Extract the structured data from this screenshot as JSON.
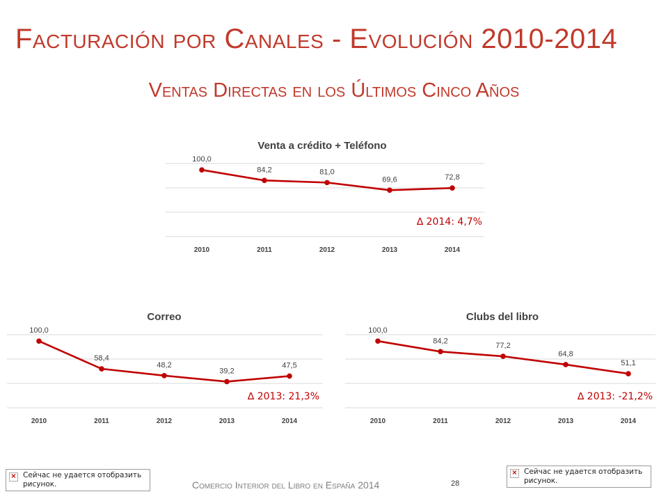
{
  "main_title": "Facturación por Canales - Evolución 2010-2014",
  "subtitle": "Ventas Directas en los Últimos Cinco Años",
  "footer": "Comercio Interior del Libro en España 2014",
  "page_number": "28",
  "broken_image_left": "Сейчас не удается отобразить рисунок.",
  "broken_image_right": "Сейчас не удается отобразить рисунок.",
  "colors": {
    "accent": "#c0392b",
    "series": "#c00000"
  },
  "chart_data": [
    {
      "type": "line",
      "title": "Venta a crédito + Teléfono",
      "categories": [
        "2010",
        "2011",
        "2012",
        "2013",
        "2014"
      ],
      "values": [
        100.0,
        84.2,
        81.0,
        69.6,
        72.8
      ],
      "labels": [
        "100,0",
        "84,2",
        "81,0",
        "69,6",
        "72,8"
      ],
      "annotation": "∆ 2014: 4,7%",
      "ylim": [
        0,
        120
      ],
      "grid": true
    },
    {
      "type": "line",
      "title": "Correo",
      "categories": [
        "2010",
        "2011",
        "2012",
        "2013",
        "2014"
      ],
      "values": [
        100.0,
        58.4,
        48.2,
        39.2,
        47.5
      ],
      "labels": [
        "100,0",
        "58,4",
        "48,2",
        "39,2",
        "47,5"
      ],
      "annotation": "∆ 2013: 21,3%",
      "ylim": [
        0,
        120
      ],
      "grid": true
    },
    {
      "type": "line",
      "title": "Clubs del libro",
      "categories": [
        "2010",
        "2011",
        "2012",
        "2013",
        "2014"
      ],
      "values": [
        100.0,
        84.2,
        77.2,
        64.8,
        51.1
      ],
      "labels": [
        "100,0",
        "84,2",
        "77,2",
        "64,8",
        "51,1"
      ],
      "annotation": "∆ 2013: -21,2%",
      "ylim": [
        0,
        120
      ],
      "grid": true
    }
  ]
}
